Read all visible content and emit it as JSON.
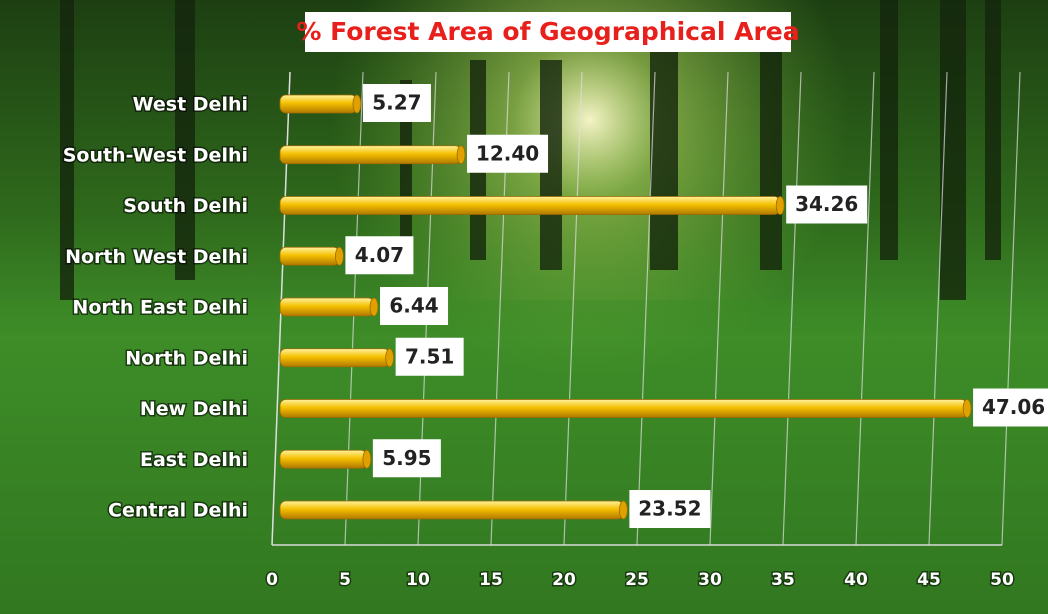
{
  "chart_data": {
    "type": "bar",
    "orientation": "horizontal",
    "title": "% Forest Area of Geographical Area",
    "categories": [
      "West Delhi",
      "South-West Delhi",
      "South Delhi",
      "North West Delhi",
      "North East Delhi",
      "North Delhi",
      "New Delhi",
      "East Delhi",
      "Central Delhi"
    ],
    "values": [
      5.27,
      12.4,
      34.26,
      4.07,
      6.44,
      7.51,
      47.06,
      5.95,
      23.52
    ],
    "value_labels": [
      "5.27",
      "12.40",
      "34.26",
      "4.07",
      "6.44",
      "7.51",
      "47.06",
      "5.95",
      "23.52"
    ],
    "color": "#f0b400",
    "xlim": [
      0,
      50
    ],
    "xticks": [
      0,
      5,
      10,
      15,
      20,
      25,
      30,
      35,
      40,
      45,
      50
    ],
    "grid": true
  }
}
